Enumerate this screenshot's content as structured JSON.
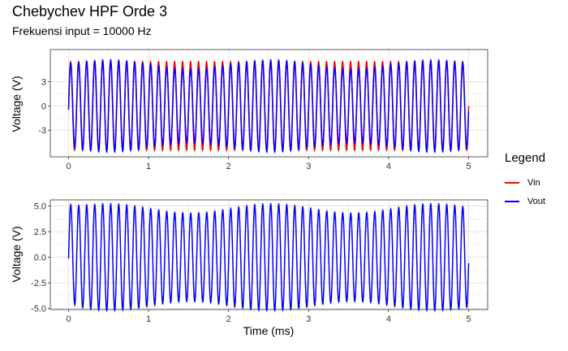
{
  "title": "Chebychev HPF Orde 3",
  "subtitle": "Frekuensi input = 10000 Hz",
  "legend": {
    "title": "Legend",
    "items": [
      {
        "label": "Vin",
        "color": "#ff0000"
      },
      {
        "label": "Vout",
        "color": "#0000ff"
      }
    ]
  },
  "chart_data": [
    {
      "type": "line",
      "ylabel": "Voltage (V)",
      "xlabel": "",
      "xlim": [
        0,
        5
      ],
      "ylim": [
        -6.3,
        7.0
      ],
      "x_ticks": [
        "0",
        "1",
        "2",
        "3",
        "4",
        "5"
      ],
      "y_ticks": [
        "3",
        "0",
        "-3"
      ],
      "y_tick_values": [
        3,
        0,
        -3
      ],
      "grid": true,
      "series": [
        {
          "name": "Vin",
          "color": "#ff0000",
          "frequency_khz": 10,
          "amplitude": 5.5,
          "x_range": [
            0,
            5
          ]
        },
        {
          "name": "Vout",
          "color": "#0000ff",
          "frequency_khz": 10,
          "amplitude_range": [
            4.9,
            5.8
          ],
          "x_range": [
            0,
            5
          ]
        }
      ]
    },
    {
      "type": "line",
      "ylabel": "Voltage (V)",
      "xlabel": "Time (ms)",
      "xlim": [
        0,
        5
      ],
      "ylim": [
        -5.1,
        5.6
      ],
      "x_ticks": [
        "0",
        "1",
        "2",
        "3",
        "4",
        "5"
      ],
      "y_ticks": [
        "5.0",
        "2.5",
        "0.0",
        "-2.5",
        "-5.0"
      ],
      "y_tick_values": [
        5,
        2.5,
        0,
        -2.5,
        -5
      ],
      "grid": true,
      "series": [
        {
          "name": "Vout",
          "color": "#0000ff",
          "frequency_khz": 10,
          "amplitude_range": [
            4.2,
            5.3
          ],
          "x_range": [
            0,
            5
          ]
        }
      ]
    }
  ]
}
